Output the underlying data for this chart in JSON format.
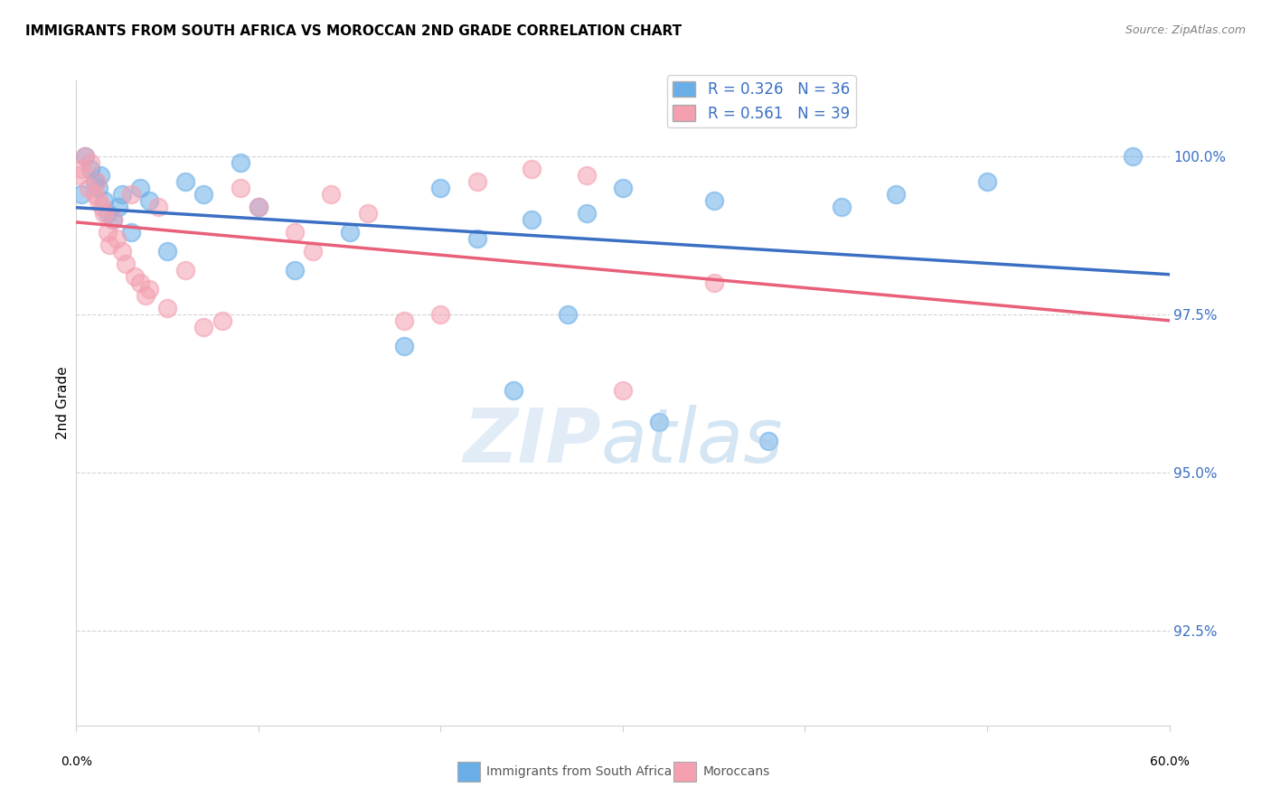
{
  "title": "IMMIGRANTS FROM SOUTH AFRICA VS MOROCCAN 2ND GRADE CORRELATION CHART",
  "source": "Source: ZipAtlas.com",
  "ylabel": "2nd Grade",
  "y_ticks": [
    92.5,
    95.0,
    97.5,
    100.0
  ],
  "y_tick_labels": [
    "92.5%",
    "95.0%",
    "97.5%",
    "100.0%"
  ],
  "xlim": [
    0.0,
    60.0
  ],
  "ylim": [
    91.0,
    101.2
  ],
  "blue_color": "#6aaee8",
  "pink_color": "#f4a0b0",
  "blue_line_color": "#3a6fc4",
  "pink_line_color": "#e8607a",
  "legend_blue_r": "0.326",
  "legend_blue_n": "36",
  "legend_pink_r": "0.561",
  "legend_pink_n": "39",
  "blue_scatter_x": [
    0.3,
    0.5,
    0.8,
    1.0,
    1.2,
    1.3,
    1.5,
    1.7,
    2.0,
    2.3,
    2.5,
    3.0,
    3.5,
    4.0,
    5.0,
    6.0,
    7.0,
    9.0,
    10.0,
    12.0,
    15.0,
    18.0,
    20.0,
    22.0,
    24.0,
    25.0,
    27.0,
    28.0,
    30.0,
    32.0,
    35.0,
    38.0,
    42.0,
    45.0,
    50.0,
    58.0
  ],
  "blue_scatter_y": [
    99.4,
    100.0,
    99.8,
    99.6,
    99.5,
    99.7,
    99.3,
    99.1,
    99.0,
    99.2,
    99.4,
    98.8,
    99.5,
    99.3,
    98.5,
    99.6,
    99.4,
    99.9,
    99.2,
    98.2,
    98.8,
    97.0,
    99.5,
    98.7,
    96.3,
    99.0,
    97.5,
    99.1,
    99.5,
    95.8,
    99.3,
    95.5,
    99.2,
    99.4,
    99.6,
    100.0
  ],
  "pink_scatter_x": [
    0.2,
    0.3,
    0.5,
    0.7,
    0.8,
    1.0,
    1.1,
    1.2,
    1.4,
    1.5,
    1.7,
    1.8,
    2.0,
    2.2,
    2.5,
    2.7,
    3.0,
    3.2,
    3.5,
    3.8,
    4.0,
    4.5,
    5.0,
    6.0,
    7.0,
    8.0,
    9.0,
    10.0,
    12.0,
    13.0,
    14.0,
    16.0,
    18.0,
    20.0,
    22.0,
    25.0,
    28.0,
    30.0,
    35.0
  ],
  "pink_scatter_y": [
    99.7,
    99.8,
    100.0,
    99.5,
    99.9,
    99.4,
    99.6,
    99.3,
    99.2,
    99.1,
    98.8,
    98.6,
    99.0,
    98.7,
    98.5,
    98.3,
    99.4,
    98.1,
    98.0,
    97.8,
    97.9,
    99.2,
    97.6,
    98.2,
    97.3,
    97.4,
    99.5,
    99.2,
    98.8,
    98.5,
    99.4,
    99.1,
    97.4,
    97.5,
    99.6,
    99.8,
    99.7,
    96.3,
    98.0
  ]
}
